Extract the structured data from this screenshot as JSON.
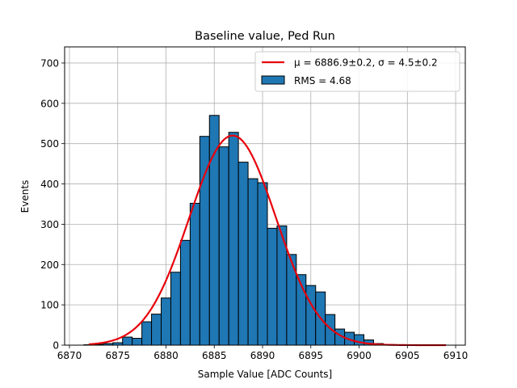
{
  "chart_data": {
    "type": "bar",
    "title": "Baseline value, Ped Run",
    "xlabel": "Sample Value [ADC Counts]",
    "ylabel": "Events",
    "xlim": [
      6869.5,
      6911.0
    ],
    "ylim": [
      0,
      740
    ],
    "xticks": [
      6870,
      6875,
      6880,
      6885,
      6890,
      6895,
      6900,
      6905,
      6910
    ],
    "yticks": [
      0,
      100,
      200,
      300,
      400,
      500,
      600,
      700
    ],
    "grid": true,
    "legend_position": "top-right",
    "bin_width": 1,
    "series": [
      {
        "name": "RMS = 4.68",
        "color": "#1f77b4",
        "bins": [
          {
            "x": 6872,
            "value": 1
          },
          {
            "x": 6873,
            "value": 2
          },
          {
            "x": 6874,
            "value": 4
          },
          {
            "x": 6875,
            "value": 6
          },
          {
            "x": 6876,
            "value": 20
          },
          {
            "x": 6877,
            "value": 17
          },
          {
            "x": 6878,
            "value": 58
          },
          {
            "x": 6879,
            "value": 77
          },
          {
            "x": 6880,
            "value": 117
          },
          {
            "x": 6881,
            "value": 181
          },
          {
            "x": 6882,
            "value": 260
          },
          {
            "x": 6883,
            "value": 352
          },
          {
            "x": 6884,
            "value": 518
          },
          {
            "x": 6885,
            "value": 570
          },
          {
            "x": 6886,
            "value": 492
          },
          {
            "x": 6887,
            "value": 528
          },
          {
            "x": 6888,
            "value": 454
          },
          {
            "x": 6889,
            "value": 413
          },
          {
            "x": 6890,
            "value": 403
          },
          {
            "x": 6891,
            "value": 290
          },
          {
            "x": 6892,
            "value": 296
          },
          {
            "x": 6893,
            "value": 225
          },
          {
            "x": 6894,
            "value": 175
          },
          {
            "x": 6895,
            "value": 148
          },
          {
            "x": 6896,
            "value": 132
          },
          {
            "x": 6897,
            "value": 76
          },
          {
            "x": 6898,
            "value": 40
          },
          {
            "x": 6899,
            "value": 32
          },
          {
            "x": 6900,
            "value": 26
          },
          {
            "x": 6901,
            "value": 13
          },
          {
            "x": 6902,
            "value": 4
          },
          {
            "x": 6903,
            "value": 2
          },
          {
            "x": 6904,
            "value": 1
          },
          {
            "x": 6905,
            "value": 1
          },
          {
            "x": 6907,
            "value": 1
          }
        ]
      },
      {
        "name": "μ = 6886.9±0.2, σ = 4.5±0.2",
        "type": "line",
        "color": "#e8000b",
        "gaussian": {
          "mu": 6886.9,
          "sigma": 4.5,
          "amplitude": 520
        },
        "x_range": [
          6872,
          6909
        ]
      }
    ]
  }
}
